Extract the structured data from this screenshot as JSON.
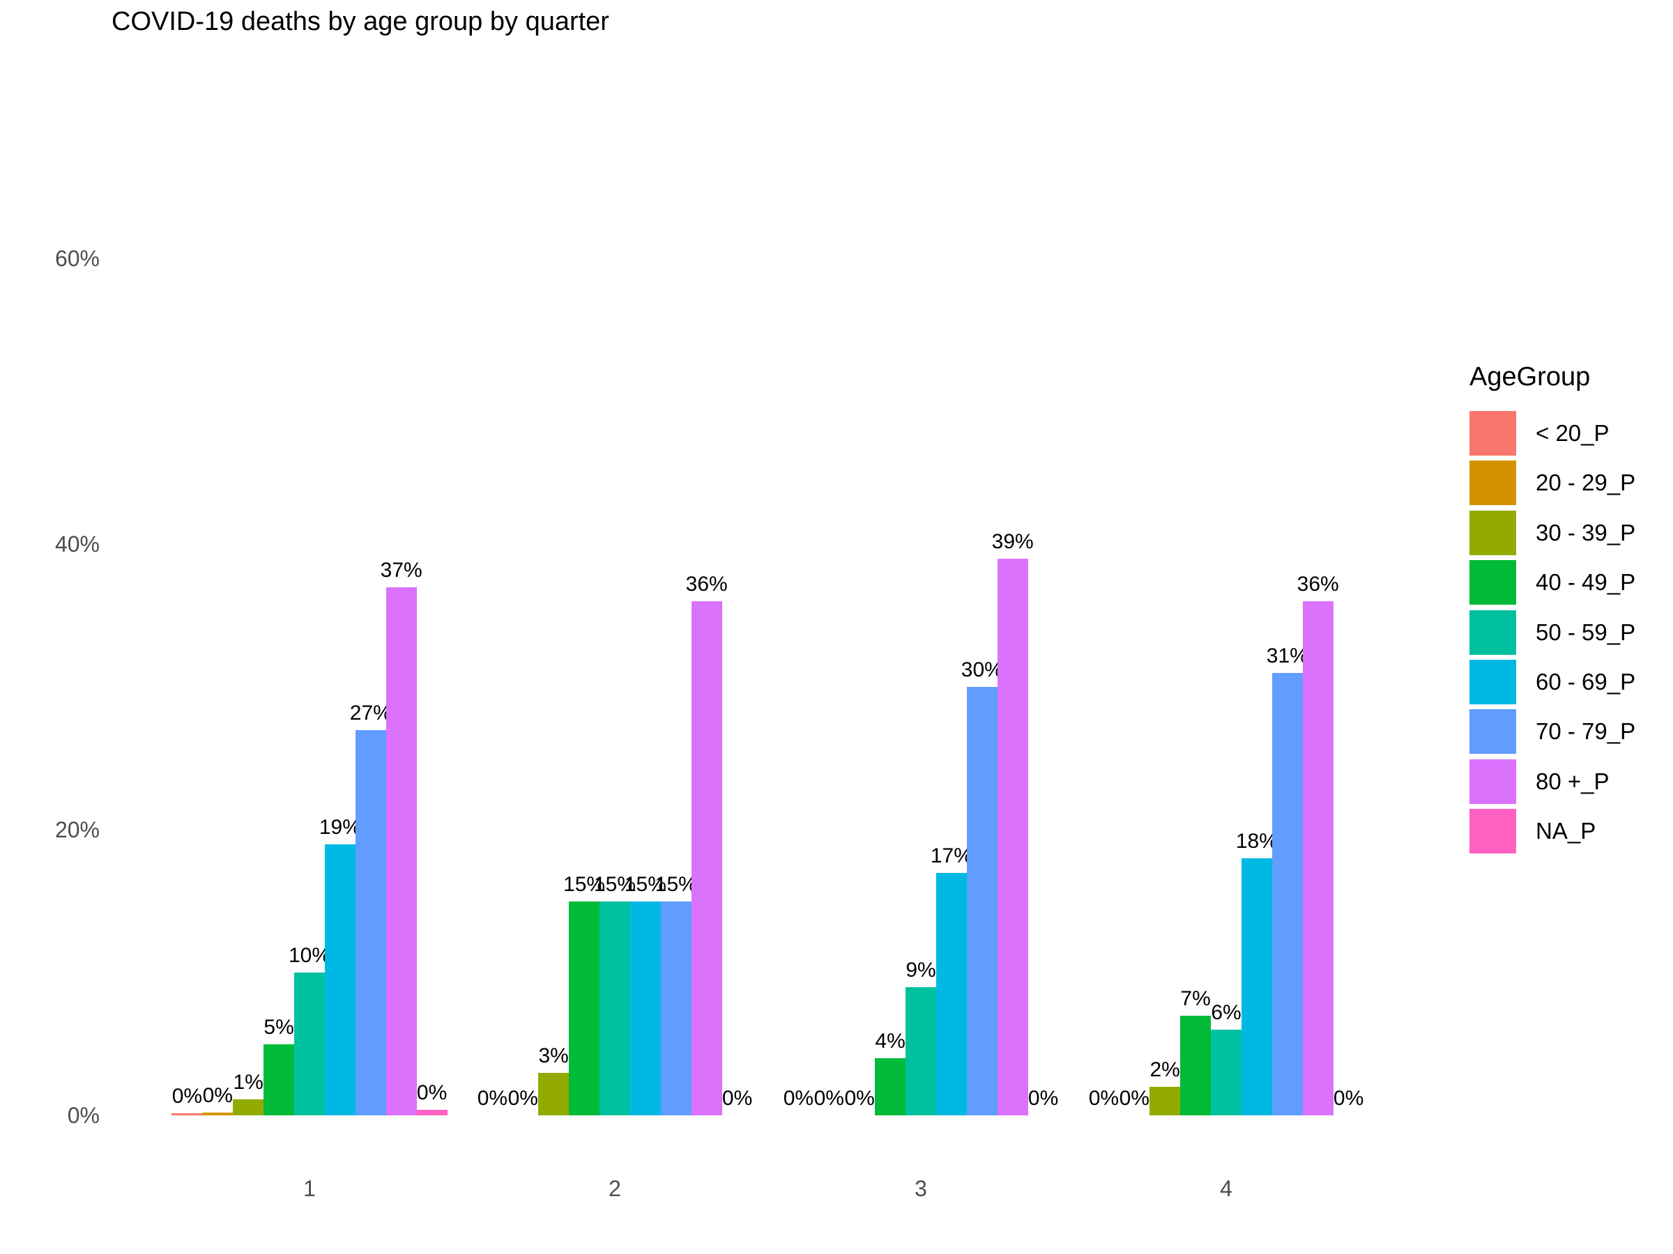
{
  "title": "COVID-19 deaths by age group by quarter",
  "legend": {
    "title": "AgeGroup",
    "items": [
      {
        "label": "< 20_P",
        "color": "#F8766D"
      },
      {
        "label": "20 - 29_P",
        "color": "#D39200"
      },
      {
        "label": "30 - 39_P",
        "color": "#93AA00"
      },
      {
        "label": "40 - 49_P",
        "color": "#00BA38"
      },
      {
        "label": "50 - 59_P",
        "color": "#00C19F"
      },
      {
        "label": "60 - 69_P",
        "color": "#00B9E3"
      },
      {
        "label": "70 - 79_P",
        "color": "#619CFF"
      },
      {
        "label": "80 +_P",
        "color": "#DB72FB"
      },
      {
        "label": "NA_P",
        "color": "#FF61C3"
      }
    ]
  },
  "chart_data": {
    "type": "bar",
    "title": "COVID-19 deaths by age group by quarter",
    "xlabel": "",
    "ylabel": "",
    "categories": [
      "1",
      "2",
      "3",
      "4"
    ],
    "y_ticks": [
      {
        "value": 0,
        "label": "0%"
      },
      {
        "value": 20,
        "label": "20%"
      },
      {
        "value": 40,
        "label": "40%"
      },
      {
        "value": 60,
        "label": "60%"
      }
    ],
    "ylim": [
      0,
      65
    ],
    "grid": false,
    "legend_position": "right",
    "bar_mode": "grouped",
    "value_suffix": "%",
    "series": [
      {
        "name": "< 20_P",
        "color": "#F8766D",
        "values": [
          0,
          0,
          0,
          0
        ],
        "bar_heights": [
          0.15,
          0,
          0,
          0
        ]
      },
      {
        "name": "20 - 29_P",
        "color": "#D39200",
        "values": [
          0,
          0,
          0,
          0
        ],
        "bar_heights": [
          0.2,
          0,
          0,
          0
        ]
      },
      {
        "name": "30 - 39_P",
        "color": "#93AA00",
        "values": [
          1,
          3,
          0,
          2
        ],
        "bar_heights": [
          1.1,
          3,
          0,
          2
        ]
      },
      {
        "name": "40 - 49_P",
        "color": "#00BA38",
        "values": [
          5,
          15,
          4,
          7
        ],
        "bar_heights": [
          5,
          15,
          4,
          7
        ]
      },
      {
        "name": "50 - 59_P",
        "color": "#00C19F",
        "values": [
          10,
          15,
          9,
          6
        ],
        "bar_heights": [
          10,
          15,
          9,
          6
        ]
      },
      {
        "name": "60 - 69_P",
        "color": "#00B9E3",
        "values": [
          19,
          15,
          17,
          18
        ],
        "bar_heights": [
          19,
          15,
          17,
          18
        ]
      },
      {
        "name": "70 - 79_P",
        "color": "#619CFF",
        "values": [
          27,
          15,
          30,
          31
        ],
        "bar_heights": [
          27,
          15,
          30,
          31
        ]
      },
      {
        "name": "80 +_P",
        "color": "#DB72FB",
        "values": [
          37,
          36,
          39,
          36
        ],
        "bar_heights": [
          37,
          36,
          39,
          36
        ]
      },
      {
        "name": "NA_P",
        "color": "#FF61C3",
        "values": [
          0,
          0,
          0,
          0
        ],
        "bar_heights": [
          0.4,
          0,
          0,
          0
        ]
      }
    ]
  }
}
